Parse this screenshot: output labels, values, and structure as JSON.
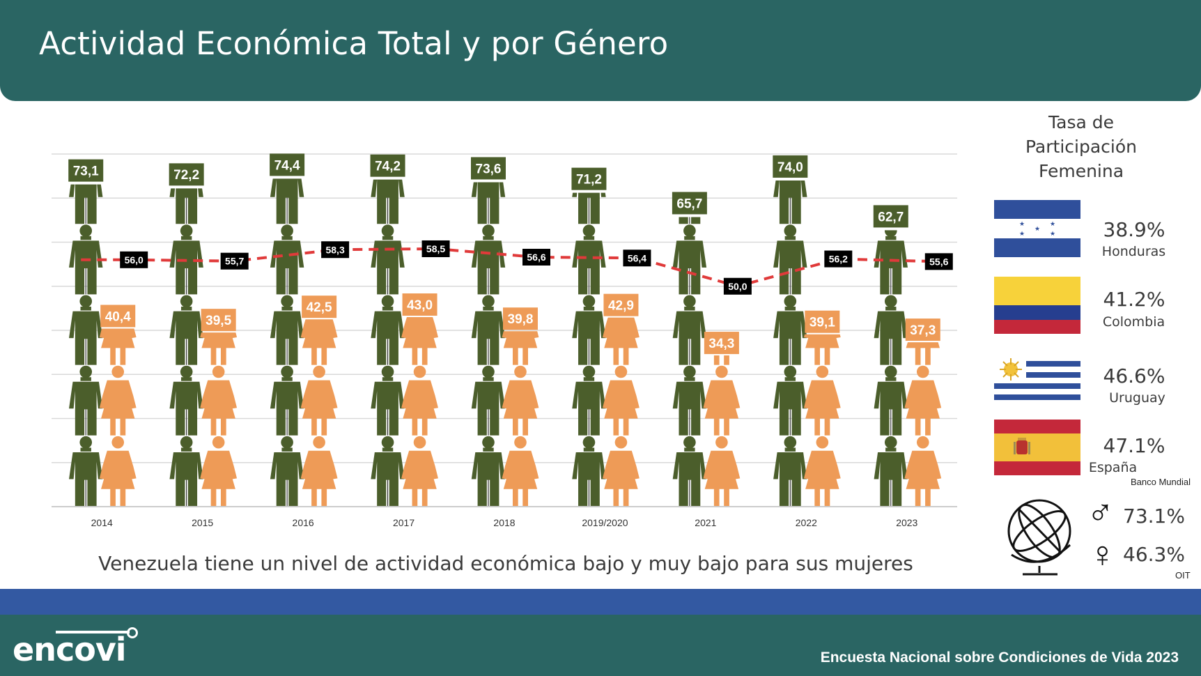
{
  "header": {
    "title": "Actividad Económica Total y por Género"
  },
  "chart_data": {
    "type": "pictograph",
    "categories": [
      "2014",
      "2015",
      "2016",
      "2017",
      "2018",
      "2019/2020",
      "2021",
      "2022",
      "2023"
    ],
    "series": [
      {
        "values": [
          73.1,
          72.2,
          74.4,
          74.2,
          73.6,
          71.2,
          65.7,
          74.0,
          62.7
        ],
        "labels": [
          "73,1",
          "72,2",
          "74,4",
          "74,2",
          "73,6",
          "71,2",
          "65,7",
          "74,0",
          "62,7"
        ],
        "color": "#4b5e2b"
      },
      {
        "values": [
          56.0,
          55.7,
          58.3,
          58.5,
          56.6,
          56.4,
          50.0,
          56.2,
          55.6
        ],
        "labels": [
          "56,0",
          "55,7",
          "58,3",
          "58,5",
          "56,6",
          "56,4",
          "50,0",
          "56,2",
          "55,6"
        ],
        "color": "#e03a3a"
      },
      {
        "values": [
          40.4,
          39.5,
          42.5,
          43.0,
          39.8,
          42.9,
          34.3,
          39.1,
          37.3
        ],
        "labels": [
          "40,4",
          "39,5",
          "42,5",
          "43,0",
          "39,8",
          "42,9",
          "34,3",
          "39,1",
          "37,3"
        ],
        "color": "#ee9b57"
      }
    ],
    "ylim": [
      0,
      80
    ],
    "grid": true,
    "legend": "none"
  },
  "caption": "Venezuela tiene un nivel de actividad económica bajo y muy bajo para sus mujeres",
  "sidebar": {
    "title_lines": [
      "Tasa de",
      "Participación",
      "Femenina"
    ],
    "countries": [
      {
        "name": "Honduras",
        "value": "38.9%"
      },
      {
        "name": "Colombia",
        "value": "41.2%"
      },
      {
        "name": "Uruguay",
        "value": "46.6%"
      },
      {
        "name": "España",
        "value": "47.1%"
      }
    ],
    "countries_source": "Banco Mundial",
    "world": {
      "male_symbol": "♂",
      "male_value": "73.1%",
      "female_symbol": "♀",
      "female_value": "46.3%",
      "source": "OIT"
    }
  },
  "footer": {
    "logo": "encovi",
    "text": "Encuesta Nacional sobre Condiciones de Vida 2023"
  },
  "colors": {
    "teal": "#2a6563",
    "blue": "#3359a2",
    "male": "#4b5e2b",
    "female": "#ee9b57",
    "trend": "#e03a3a"
  }
}
